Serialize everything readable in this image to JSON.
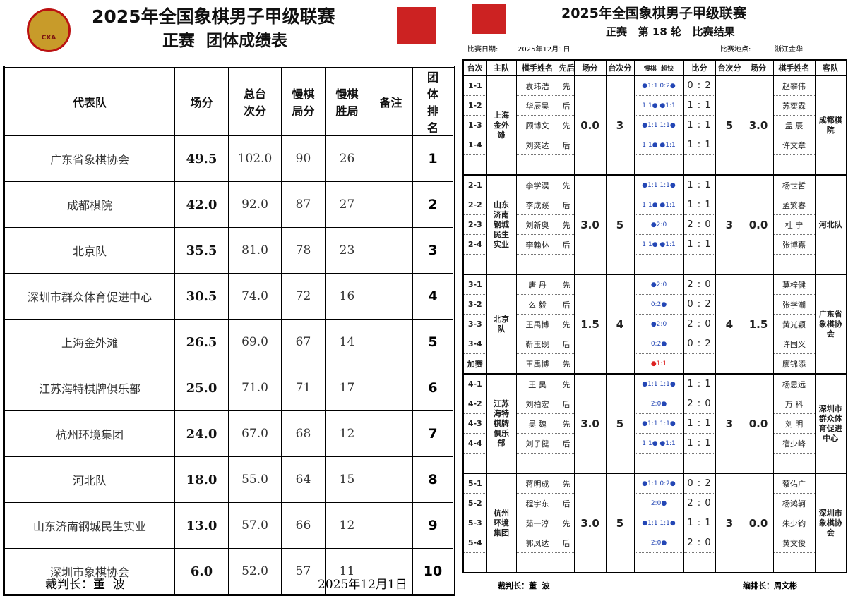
{
  "left": {
    "logo_text": "CXA",
    "title": "2025年全国象棋男子甲级联赛",
    "subtitle": "正赛  团体成绩表",
    "headers": [
      "代表队",
      "场分",
      "总台次分",
      "慢棋局分",
      "慢棋胜局",
      "备注",
      "团体排名"
    ],
    "rows": [
      [
        "广东省象棋协会",
        "49.5",
        "102.0",
        "90",
        "26",
        "1"
      ],
      [
        "成都棋院",
        "42.0",
        "92.0",
        "87",
        "27",
        "2"
      ],
      [
        "北京队",
        "35.5",
        "81.0",
        "78",
        "23",
        "3"
      ],
      [
        "深圳市群众体育促进中心",
        "30.5",
        "74.0",
        "72",
        "16",
        "4"
      ],
      [
        "上海金外滩",
        "26.5",
        "69.0",
        "67",
        "14",
        "5"
      ],
      [
        "江苏海特棋牌俱乐部",
        "25.0",
        "71.0",
        "71",
        "17",
        "6"
      ],
      [
        "杭州环境集团",
        "24.0",
        "67.0",
        "68",
        "12",
        "7"
      ],
      [
        "河北队",
        "18.0",
        "55.0",
        "64",
        "15",
        "8"
      ],
      [
        "山东济南钢城民生实业",
        "13.0",
        "57.0",
        "66",
        "12",
        "9"
      ],
      [
        "深圳市象棋协会",
        "6.0",
        "52.0",
        "57",
        "11",
        "10"
      ]
    ],
    "footer_referee": "裁判长：董  波",
    "footer_date": "2025年12月1日"
  },
  "right": {
    "title": "2025年全国象棋男子甲级联赛",
    "subtitle": "正赛   第 18 轮   比赛结果",
    "date_label": "比赛日期:",
    "date": "2025年12月1日",
    "place_label": "比赛地点:",
    "place": "浙江金华",
    "headers": [
      "台次",
      "主队",
      "棋手姓名",
      "先后",
      "场分",
      "台次分",
      "慢棋  超快",
      "比分",
      "台次分",
      "场分",
      "棋手姓名",
      "客队"
    ],
    "matches": [
      {
        "home": "上海金外滩",
        "away": "成都棋院",
        "home_score": "0.0",
        "home_board": "3",
        "away_board": "5",
        "away_score": "3.0",
        "boards": [
          {
            "no": "1-1",
            "player": "袁玮浩",
            "side": "先",
            "result": "●1:1  0:2●",
            "score": "0 : 2",
            "opponent": "赵攀伟"
          },
          {
            "no": "1-2",
            "player": "华辰昊",
            "side": "后",
            "result": "1:1●  ●1:1",
            "score": "1 : 1",
            "opponent": "苏奕霖"
          },
          {
            "no": "1-3",
            "player": "顾博文",
            "side": "先",
            "result": "●1:1  1:1●",
            "score": "1 : 1",
            "opponent": "孟  辰"
          },
          {
            "no": "1-4",
            "player": "刘奕达",
            "side": "后",
            "result": "1:1●  ●1:1",
            "score": "1 : 1",
            "opponent": "许文章"
          }
        ]
      },
      {
        "home": "山东济南钢城民生实业",
        "away": "河北队",
        "home_score": "3.0",
        "home_board": "5",
        "away_board": "3",
        "away_score": "0.0",
        "boards": [
          {
            "no": "2-1",
            "player": "李学淏",
            "side": "先",
            "result": "●1:1  1:1●",
            "score": "1 : 1",
            "opponent": "杨世哲"
          },
          {
            "no": "2-2",
            "player": "李成蹊",
            "side": "后",
            "result": "1:1●  ●1:1",
            "score": "1 : 1",
            "opponent": "孟繁睿"
          },
          {
            "no": "2-3",
            "player": "刘新奥",
            "side": "先",
            "result": "●2:0",
            "score": "2 : 0",
            "opponent": "杜  宁"
          },
          {
            "no": "2-4",
            "player": "李翰林",
            "side": "后",
            "result": "1:1●  ●1:1",
            "score": "1 : 1",
            "opponent": "张博嘉"
          }
        ]
      },
      {
        "home": "北京队",
        "away": "广东省象棋协会",
        "home_score": "1.5",
        "home_board": "4",
        "away_board": "4",
        "away_score": "1.5",
        "boards": [
          {
            "no": "3-1",
            "player": "唐  丹",
            "side": "先",
            "result": "●2:0",
            "score": "2 : 0",
            "opponent": "莫梓健"
          },
          {
            "no": "3-2",
            "player": "么  毅",
            "side": "后",
            "result": "0:2●",
            "score": "0 : 2",
            "opponent": "张学潮"
          },
          {
            "no": "3-3",
            "player": "王禹博",
            "side": "先",
            "result": "●2:0",
            "score": "2 : 0",
            "opponent": "黄光颖"
          },
          {
            "no": "3-4",
            "player": "靳玉砚",
            "side": "后",
            "result": "0:2●",
            "score": "0 : 2",
            "opponent": "许国义"
          },
          {
            "no": "加赛",
            "player": "王禹博",
            "side": "先",
            "result": "●1:1",
            "opponent": "廖锦添"
          }
        ]
      },
      {
        "home": "江苏海特棋牌俱乐部",
        "away": "深圳市群众体育促进中心",
        "home_score": "3.0",
        "home_board": "5",
        "away_board": "3",
        "away_score": "0.0",
        "boards": [
          {
            "no": "4-1",
            "player": "王  昊",
            "side": "先",
            "result": "●1:1  1:1●",
            "score": "1 : 1",
            "opponent": "杨思远"
          },
          {
            "no": "4-2",
            "player": "刘柏宏",
            "side": "后",
            "result": "2:0●",
            "score": "2 : 0",
            "opponent": "万  科"
          },
          {
            "no": "4-3",
            "player": "吴  魏",
            "side": "先",
            "result": "●1:1  1:1●",
            "score": "1 : 1",
            "opponent": "刘  明"
          },
          {
            "no": "4-4",
            "player": "刘子健",
            "side": "后",
            "result": "1:1●  ●1:1",
            "score": "1 : 1",
            "opponent": "宿少峰"
          }
        ]
      },
      {
        "home": "杭州环境集团",
        "away": "深圳市象棋协会",
        "home_score": "3.0",
        "home_board": "5",
        "away_board": "3",
        "away_score": "0.0",
        "boards": [
          {
            "no": "5-1",
            "player": "蒋明成",
            "side": "先",
            "result": "●1:1  0:2●",
            "score": "0 : 2",
            "opponent": "蔡佑广"
          },
          {
            "no": "5-2",
            "player": "程宇东",
            "side": "后",
            "result": "2:0●",
            "score": "2 : 0",
            "opponent": "杨鸿轲"
          },
          {
            "no": "5-3",
            "player": "茹一淳",
            "side": "先",
            "result": "●1:1  1:1●",
            "score": "1 : 1",
            "opponent": "朱少钧"
          },
          {
            "no": "5-4",
            "player": "郭凤达",
            "side": "后",
            "result": "2:0●",
            "score": "2 : 0",
            "opponent": "黄文俊"
          }
        ]
      }
    ],
    "footer_referee": "裁判长：董  波",
    "footer_arranger": "编排长：周文彬"
  }
}
